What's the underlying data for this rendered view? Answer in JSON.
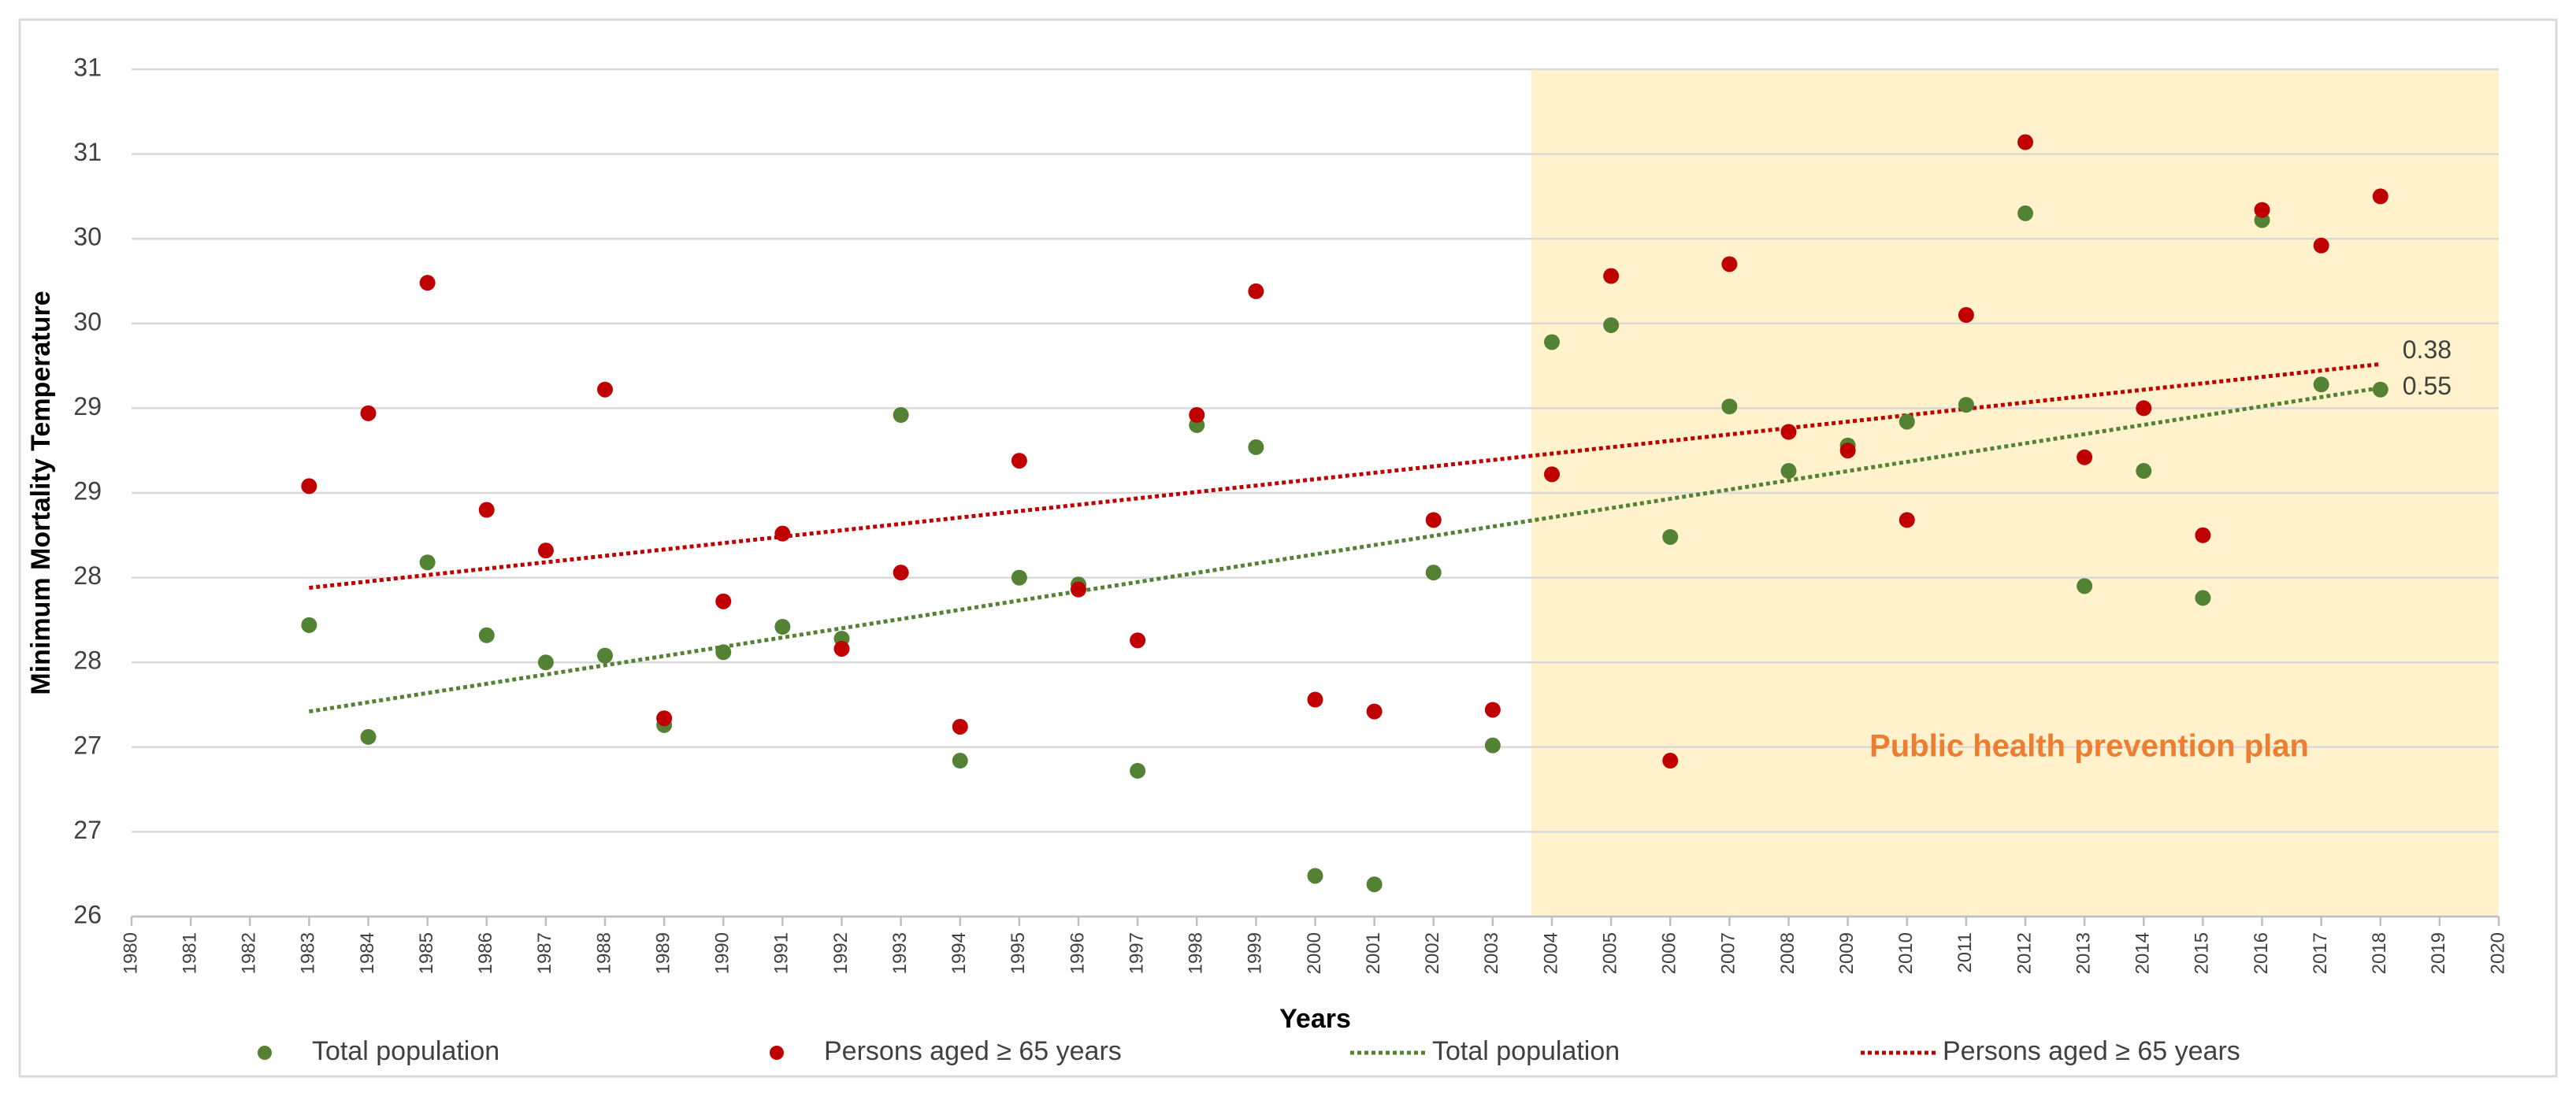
{
  "chart_data": {
    "type": "scatter",
    "x_label": "Years",
    "y_label": "Minimum Mortality Temperature",
    "xlim": [
      1980,
      2020
    ],
    "xticks": [
      1980,
      1981,
      1982,
      1983,
      1984,
      1985,
      1986,
      1987,
      1988,
      1989,
      1990,
      1991,
      1992,
      1993,
      1994,
      1995,
      1996,
      1997,
      1998,
      1999,
      2000,
      2001,
      2002,
      2003,
      2004,
      2005,
      2006,
      2007,
      2008,
      2009,
      2010,
      2011,
      2012,
      2013,
      2014,
      2015,
      2016,
      2017,
      2018,
      2019,
      2020
    ],
    "ylim": [
      26,
      31
    ],
    "yticks": [
      26,
      {
        "value": 26.5,
        "label": "27"
      },
      27,
      {
        "value": 27.5,
        "label": "28"
      },
      28,
      {
        "value": 28.5,
        "label": "29"
      },
      29,
      {
        "value": 29.5,
        "label": "30"
      },
      30,
      {
        "value": 30.5,
        "label": "31"
      },
      31
    ],
    "grid": true,
    "x": [
      1983,
      1984,
      1985,
      1986,
      1987,
      1988,
      1989,
      1990,
      1991,
      1992,
      1993,
      1994,
      1995,
      1996,
      1997,
      1998,
      1999,
      2000,
      2001,
      2002,
      2003,
      2004,
      2005,
      2006,
      2007,
      2008,
      2009,
      2010,
      2011,
      2012,
      2013,
      2014,
      2015,
      2016,
      2017,
      2018
    ],
    "series": [
      {
        "name": "Total population",
        "mode": "markers",
        "color": "#548235",
        "values": [
          27.72,
          27.06,
          28.09,
          27.66,
          27.5,
          27.54,
          27.13,
          27.56,
          27.71,
          27.64,
          28.96,
          26.92,
          28.0,
          27.96,
          26.86,
          28.9,
          28.77,
          26.24,
          26.19,
          28.03,
          27.01,
          29.39,
          29.49,
          28.24,
          29.01,
          28.63,
          28.78,
          28.92,
          29.02,
          30.15,
          27.95,
          28.63,
          27.88,
          30.11,
          29.14,
          29.11
        ]
      },
      {
        "name": "Persons aged ≥ 65 years",
        "mode": "markers",
        "color": "#c00000",
        "values": [
          28.54,
          28.97,
          29.74,
          28.4,
          28.16,
          29.11,
          27.17,
          27.86,
          28.26,
          27.58,
          28.03,
          27.12,
          28.69,
          27.93,
          27.63,
          28.96,
          29.69,
          27.28,
          27.21,
          28.34,
          27.22,
          28.61,
          29.78,
          26.92,
          29.85,
          28.86,
          28.75,
          28.34,
          29.55,
          30.57,
          28.71,
          29.0,
          28.25,
          30.17,
          29.96,
          30.25
        ]
      },
      {
        "name": "Total population",
        "mode": "trendline",
        "color": "#548235",
        "label": "0.55",
        "x": [
          1983,
          2018
        ],
        "values": [
          27.21,
          29.12
        ]
      },
      {
        "name": "Persons aged ≥ 65 years",
        "mode": "trendline",
        "color": "#c00000",
        "label": "0.38",
        "x": [
          1983,
          2018
        ],
        "values": [
          27.94,
          29.26
        ]
      }
    ],
    "shaded_region": {
      "xlim": [
        2003.65,
        2020
      ],
      "color": "#fff2cc",
      "label": "Public health prevention plan",
      "label_color": "#ed7d31"
    }
  }
}
